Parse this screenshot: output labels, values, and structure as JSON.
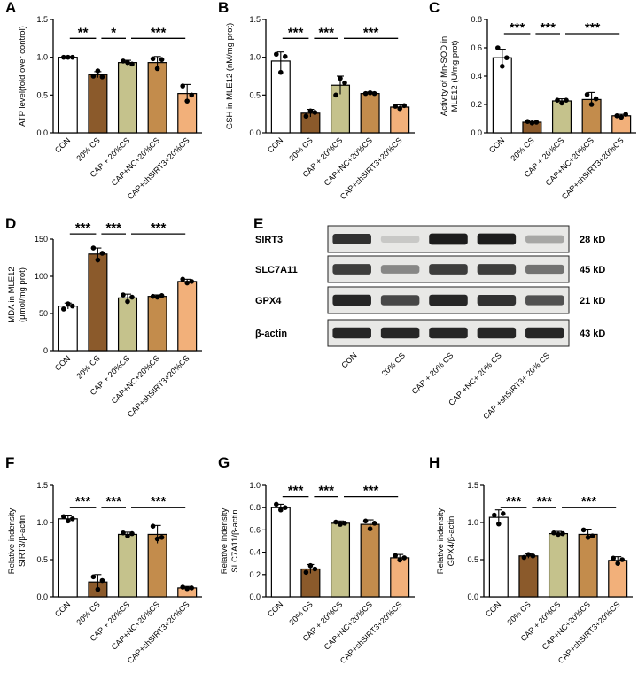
{
  "categories": [
    "CON",
    "20% CS",
    "CAP + 20%CS",
    "CAP+NC+20%CS",
    "CAP+shSIRT3+20%CS"
  ],
  "bar_colors": [
    "#ffffff",
    "#8b5a2b",
    "#c5c28c",
    "#c38c4c",
    "#f2b07a"
  ],
  "chart_data": [
    {
      "panel": "A",
      "type": "bar",
      "ylabel": "ATP level(fold over control)",
      "ylim": [
        0,
        1.5
      ],
      "yticks": [
        0,
        0.5,
        1.0,
        1.5
      ],
      "ytick_labels": [
        "0.0",
        "0.5",
        "1.0",
        "1.5"
      ],
      "categories": [
        "CON",
        "20% CS",
        "CAP + 20%CS",
        "CAP+NC+20%CS",
        "CAP+shSIRT3+20%CS"
      ],
      "values": [
        1.0,
        0.77,
        0.93,
        0.93,
        0.52
      ],
      "errors": [
        0.01,
        0.04,
        0.03,
        0.08,
        0.12
      ],
      "points": [
        [
          1.0,
          1.0,
          1.0
        ],
        [
          0.75,
          0.82,
          0.74
        ],
        [
          0.95,
          0.93,
          0.91
        ],
        [
          0.98,
          0.85,
          0.97
        ],
        [
          0.62,
          0.42,
          0.5
        ]
      ],
      "significance": [
        {
          "from": 0,
          "to": 1,
          "label": "**",
          "level": 1.25
        },
        {
          "from": 1,
          "to": 2,
          "label": "*",
          "level": 1.25
        },
        {
          "from": 2,
          "to": 4,
          "label": "***",
          "level": 1.25
        }
      ]
    },
    {
      "panel": "B",
      "type": "bar",
      "ylabel": "GSH in MLE12 (nM/mg prot)",
      "ylim": [
        0,
        1.5
      ],
      "yticks": [
        0,
        0.5,
        1.0,
        1.5
      ],
      "ytick_labels": [
        "0.0",
        "0.5",
        "1.0",
        "1.5"
      ],
      "categories": [
        "CON",
        "20% CS",
        "CAP + 20%CS",
        "CAP+NC+20%CS",
        "CAP+shSIRT3+20%CS"
      ],
      "values": [
        0.95,
        0.26,
        0.63,
        0.52,
        0.34
      ],
      "errors": [
        0.12,
        0.05,
        0.12,
        0.02,
        0.03
      ],
      "points": [
        [
          1.04,
          0.8,
          1.01
        ],
        [
          0.22,
          0.29,
          0.27
        ],
        [
          0.5,
          0.72,
          0.66
        ],
        [
          0.52,
          0.53,
          0.52
        ],
        [
          0.35,
          0.32,
          0.36
        ]
      ],
      "significance": [
        {
          "from": 0,
          "to": 1,
          "label": "***",
          "level": 1.25
        },
        {
          "from": 1,
          "to": 2,
          "label": "***",
          "level": 1.25
        },
        {
          "from": 2,
          "to": 4,
          "label": "***",
          "level": 1.25
        }
      ]
    },
    {
      "panel": "C",
      "type": "bar",
      "ylabel": "Activity of Mn-SOD in MLE12 (U/mg prot)",
      "ylim": [
        0,
        0.8
      ],
      "yticks": [
        0,
        0.2,
        0.4,
        0.6,
        0.8
      ],
      "ytick_labels": [
        "0.0",
        "0.2",
        "0.4",
        "0.6",
        "0.8"
      ],
      "categories": [
        "CON",
        "20% CS",
        "CAP + 20%CS",
        "CAP+NC+20%CS",
        "CAP+shSIRT3+20%CS"
      ],
      "values": [
        0.53,
        0.075,
        0.225,
        0.235,
        0.12
      ],
      "errors": [
        0.06,
        0.005,
        0.015,
        0.05,
        0.01
      ],
      "points": [
        [
          0.6,
          0.47,
          0.53
        ],
        [
          0.08,
          0.07,
          0.075
        ],
        [
          0.23,
          0.21,
          0.23
        ],
        [
          0.27,
          0.2,
          0.24
        ],
        [
          0.12,
          0.11,
          0.13
        ]
      ],
      "significance": [
        {
          "from": 0,
          "to": 1,
          "label": "***",
          "level": 0.7
        },
        {
          "from": 1,
          "to": 2,
          "label": "***",
          "level": 0.7
        },
        {
          "from": 2,
          "to": 4,
          "label": "***",
          "level": 0.7
        }
      ]
    },
    {
      "panel": "D",
      "type": "bar",
      "ylabel": "MDA in MLE12 (μmol/mg prot)",
      "ylim": [
        0,
        150
      ],
      "yticks": [
        0,
        50,
        100,
        150
      ],
      "ytick_labels": [
        "0",
        "50",
        "100",
        "150"
      ],
      "categories": [
        "CON",
        "20% CS",
        "CAP + 20%CS",
        "CAP+NC+20%CS",
        "CAP+shSIRT3+20%CS"
      ],
      "values": [
        60,
        130,
        71,
        73,
        93
      ],
      "errors": [
        4,
        8,
        5,
        2,
        3
      ],
      "points": [
        [
          56,
          63,
          60
        ],
        [
          138,
          122,
          131
        ],
        [
          75,
          66,
          72
        ],
        [
          73,
          72,
          74
        ],
        [
          96,
          91,
          93
        ]
      ],
      "significance": [
        {
          "from": 0,
          "to": 1,
          "label": "***",
          "level": 157
        },
        {
          "from": 1,
          "to": 2,
          "label": "***",
          "level": 157
        },
        {
          "from": 2,
          "to": 4,
          "label": "***",
          "level": 157
        }
      ]
    },
    {
      "panel": "F",
      "type": "bar",
      "ylabel": "Relative indensity SIRT3/β-actin",
      "ylim": [
        0,
        1.5
      ],
      "yticks": [
        0,
        0.5,
        1.0,
        1.5
      ],
      "ytick_labels": [
        "0.0",
        "0.5",
        "1.0",
        "1.5"
      ],
      "categories": [
        "CON",
        "20% CS",
        "CAP + 20%CS",
        "CAP+NC+20%CS",
        "CAP+shSIRT3+20%CS"
      ],
      "values": [
        1.05,
        0.2,
        0.84,
        0.84,
        0.12
      ],
      "errors": [
        0.04,
        0.1,
        0.03,
        0.12,
        0.02
      ],
      "points": [
        [
          1.08,
          1.02,
          1.05
        ],
        [
          0.27,
          0.1,
          0.22
        ],
        [
          0.86,
          0.82,
          0.85
        ],
        [
          0.95,
          0.78,
          0.8
        ],
        [
          0.13,
          0.11,
          0.12
        ]
      ],
      "significance": [
        {
          "from": 0,
          "to": 1,
          "label": "***",
          "level": 1.2
        },
        {
          "from": 1,
          "to": 2,
          "label": "***",
          "level": 1.2
        },
        {
          "from": 2,
          "to": 4,
          "label": "***",
          "level": 1.2
        }
      ]
    },
    {
      "panel": "G",
      "type": "bar",
      "ylabel": "Relative indensity SLC7A11/β-actin",
      "ylim": [
        0,
        1.0
      ],
      "yticks": [
        0,
        0.2,
        0.4,
        0.6,
        0.8,
        1.0
      ],
      "ytick_labels": [
        "0.0",
        "0.2",
        "0.4",
        "0.6",
        "0.8",
        "1.0"
      ],
      "categories": [
        "CON",
        "20% CS",
        "CAP + 20%CS",
        "CAP+NC+20%CS",
        "CAP+shSIRT3+20%CS"
      ],
      "values": [
        0.8,
        0.25,
        0.66,
        0.65,
        0.35
      ],
      "errors": [
        0.03,
        0.04,
        0.02,
        0.04,
        0.03
      ],
      "points": [
        [
          0.83,
          0.78,
          0.8
        ],
        [
          0.22,
          0.28,
          0.25
        ],
        [
          0.67,
          0.65,
          0.66
        ],
        [
          0.68,
          0.61,
          0.66
        ],
        [
          0.37,
          0.33,
          0.35
        ]
      ],
      "significance": [
        {
          "from": 0,
          "to": 1,
          "label": "***",
          "level": 0.9
        },
        {
          "from": 1,
          "to": 2,
          "label": "***",
          "level": 0.9
        },
        {
          "from": 2,
          "to": 4,
          "label": "***",
          "level": 0.9
        }
      ]
    },
    {
      "panel": "H",
      "type": "bar",
      "ylabel": "Relative indensity GPX4/β-actin",
      "ylim": [
        0,
        1.5
      ],
      "yticks": [
        0,
        0.5,
        1.0,
        1.5
      ],
      "ytick_labels": [
        "0.0",
        "0.5",
        "1.0",
        "1.5"
      ],
      "categories": [
        "CON",
        "20% CS",
        "CAP + 20%CS",
        "CAP+NC+20%CS",
        "CAP+shSIRT3+20%CS"
      ],
      "values": [
        1.07,
        0.55,
        0.85,
        0.84,
        0.49
      ],
      "errors": [
        0.1,
        0.03,
        0.03,
        0.07,
        0.05
      ],
      "points": [
        [
          1.1,
          0.98,
          1.12
        ],
        [
          0.53,
          0.57,
          0.55
        ],
        [
          0.86,
          0.84,
          0.85
        ],
        [
          0.9,
          0.8,
          0.82
        ],
        [
          0.52,
          0.45,
          0.5
        ]
      ],
      "significance": [
        {
          "from": 0,
          "to": 1,
          "label": "***",
          "level": 1.2
        },
        {
          "from": 1,
          "to": 2,
          "label": "***",
          "level": 1.2
        },
        {
          "from": 2,
          "to": 4,
          "label": "***",
          "level": 1.2
        }
      ]
    }
  ],
  "western_blot": {
    "panel": "E",
    "lanes": [
      "CON",
      "20% CS",
      "CAP + 20% CS",
      "CAP +NC+ 20% CS",
      "CAP +shSIRT3+ 20% CS"
    ],
    "proteins": [
      {
        "name": "SIRT3",
        "size": "28 kD",
        "intensity": [
          0.85,
          0.15,
          0.95,
          0.95,
          0.3
        ]
      },
      {
        "name": "SLC7A11",
        "size": "45 kD",
        "intensity": [
          0.8,
          0.45,
          0.8,
          0.8,
          0.55
        ]
      },
      {
        "name": "GPX4",
        "size": "21 kD",
        "intensity": [
          0.9,
          0.75,
          0.9,
          0.85,
          0.7
        ]
      },
      {
        "name": "β-actin",
        "size": "43 kD",
        "intensity": [
          0.9,
          0.9,
          0.9,
          0.9,
          0.9
        ]
      }
    ]
  }
}
